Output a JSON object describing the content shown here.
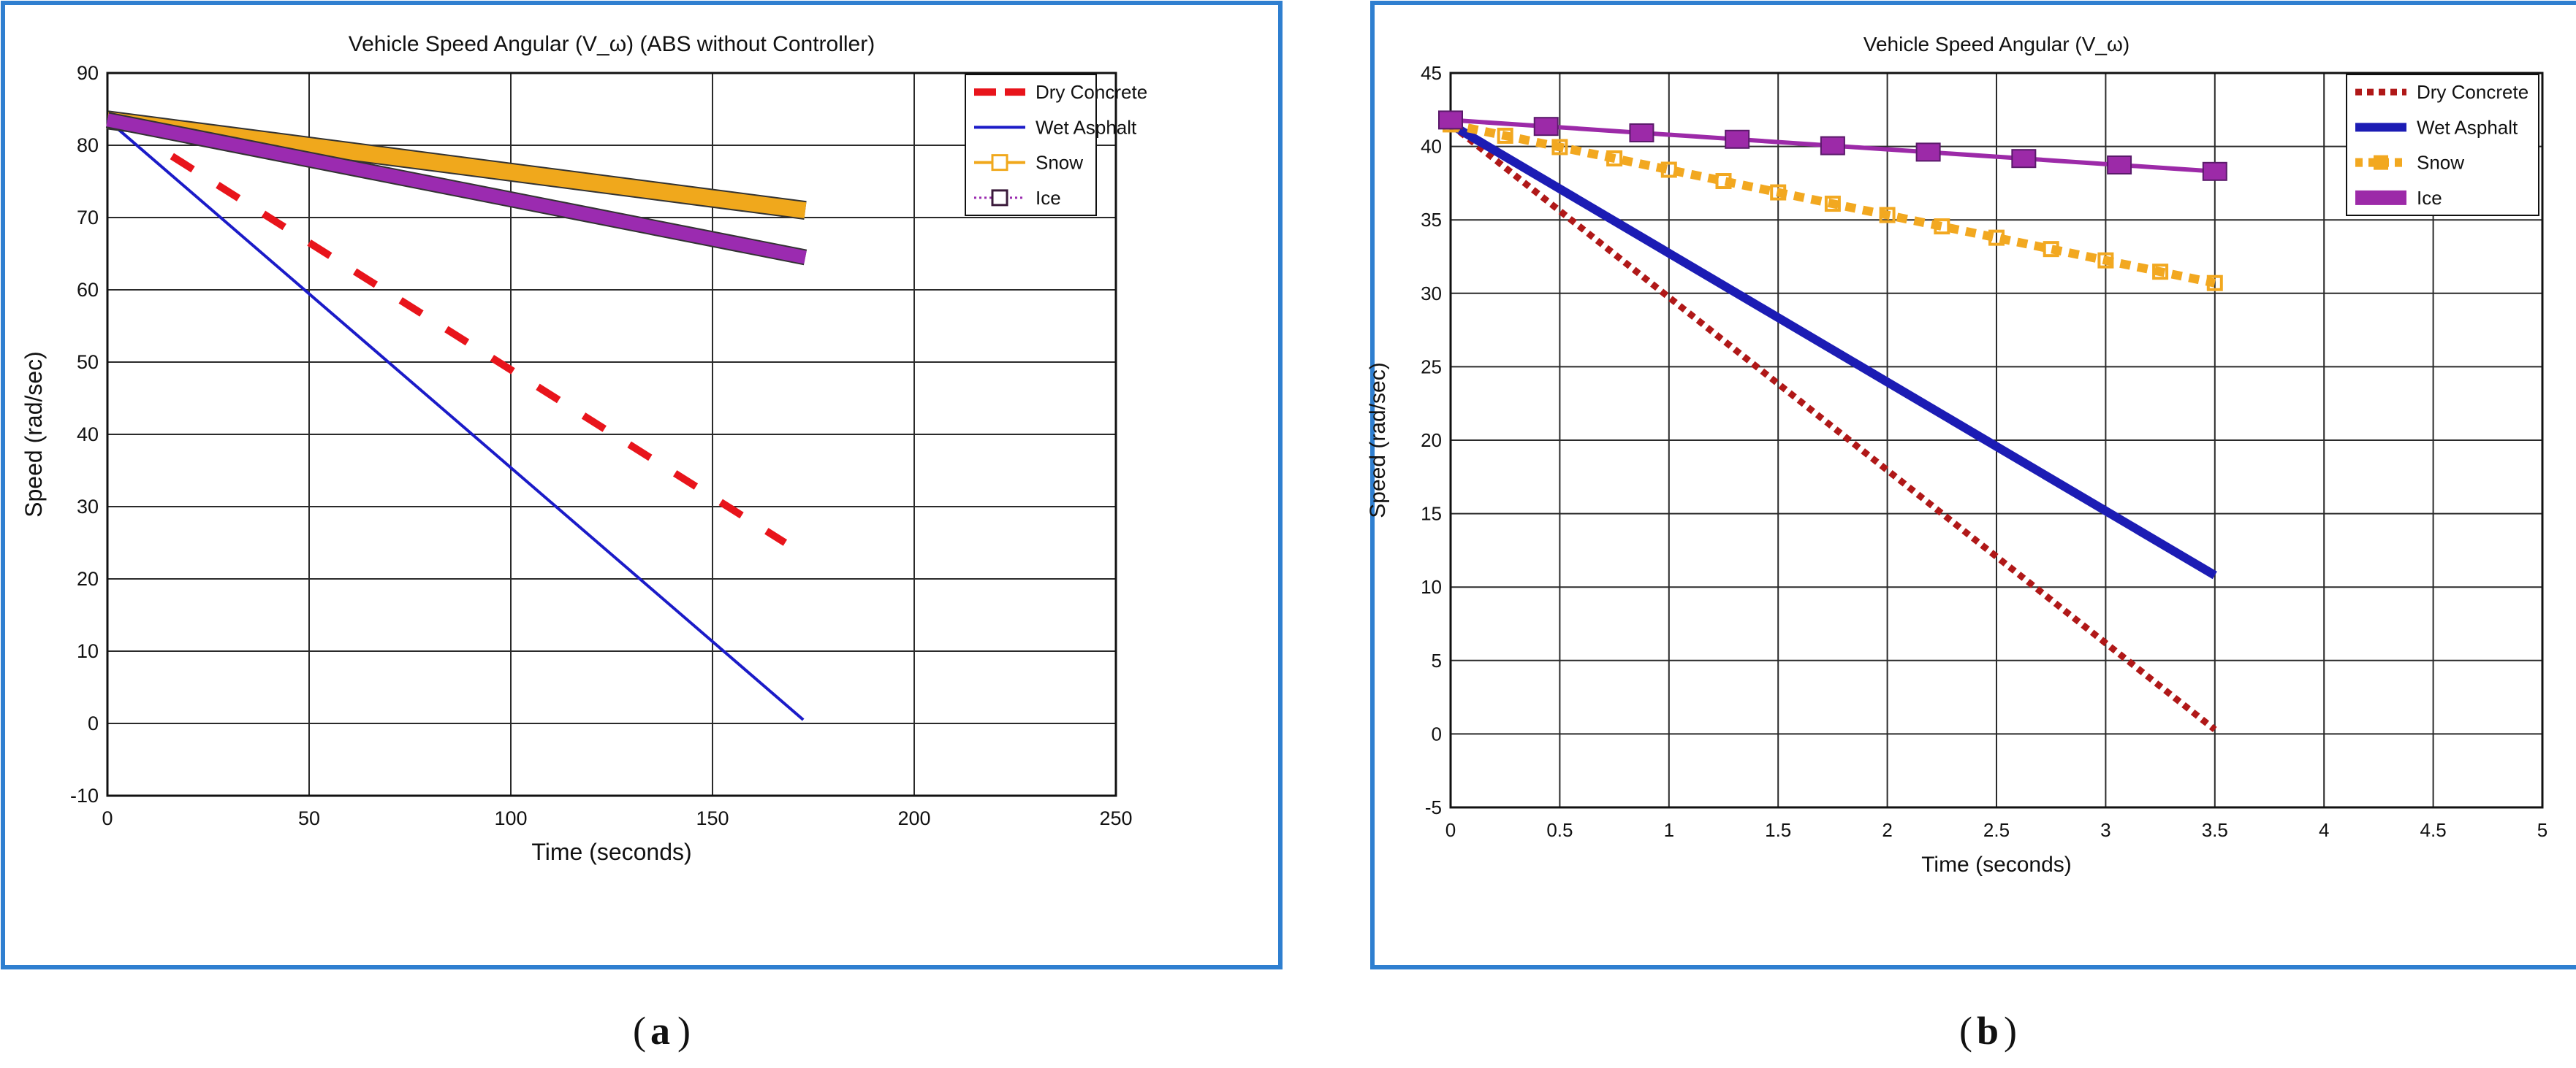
{
  "chart_data": [
    {
      "id": "a",
      "type": "line",
      "title": "Vehicle Speed Angular (V_ω) (ABS without Controller)",
      "xlabel": "Time (seconds)",
      "ylabel": "Speed (rad/sec)",
      "caption": "a",
      "xlim": [
        0,
        250
      ],
      "ylim": [
        -10,
        90
      ],
      "xticks": [
        0,
        50,
        100,
        150,
        200,
        250
      ],
      "xtick_labels": [
        "0",
        "50",
        "100",
        "150",
        "200",
        "250"
      ],
      "yticks": [
        -10,
        0,
        10,
        20,
        30,
        40,
        50,
        60,
        70,
        80,
        90
      ],
      "ytick_labels": [
        "-10",
        "0",
        "10",
        "20",
        "30",
        "40",
        "50",
        "60",
        "70",
        "80",
        "90"
      ],
      "grid": true,
      "legend_position": "top-right",
      "series": [
        {
          "name": "Dry Concrete",
          "color": "#e8141b",
          "style": "dashed",
          "x": [
            16,
            168
          ],
          "y": [
            78.5,
            25
          ]
        },
        {
          "name": "Wet Asphalt",
          "color": "#1b1bc8",
          "style": "solid",
          "x": [
            0,
            172.5
          ],
          "y": [
            83.5,
            0.5
          ]
        },
        {
          "name": "Snow",
          "color": "#f0a81c",
          "style": "solid",
          "marker": "square",
          "x": [
            0,
            173
          ],
          "y": [
            83.5,
            71
          ]
        },
        {
          "name": "Ice",
          "color": "#9b2bb0",
          "style": "dotted",
          "marker": "square",
          "x": [
            0,
            173
          ],
          "y": [
            83.5,
            64.5
          ]
        }
      ]
    },
    {
      "id": "b",
      "type": "line",
      "title": "Vehicle Speed Angular (V_ω)",
      "xlabel": "Time (seconds)",
      "ylabel": "Speed (rad/sec)",
      "caption": "b",
      "xlim": [
        0,
        5
      ],
      "ylim": [
        -5,
        45
      ],
      "xticks": [
        0,
        0.5,
        1,
        1.5,
        2,
        2.5,
        3,
        3.5,
        4,
        4.5,
        5
      ],
      "xtick_labels": [
        "0",
        "0.5",
        "1",
        "1.5",
        "2",
        "2.5",
        "3",
        "3.5",
        "4",
        "4.5",
        "5"
      ],
      "yticks": [
        -5,
        0,
        5,
        10,
        15,
        20,
        25,
        30,
        35,
        40,
        45
      ],
      "ytick_labels": [
        "-5",
        "0",
        "5",
        "10",
        "15",
        "20",
        "25",
        "30",
        "35",
        "40",
        "45"
      ],
      "grid": true,
      "legend_position": "top-right",
      "series": [
        {
          "name": "Dry Concrete",
          "color": "#b01818",
          "style": "dotted",
          "x": [
            0,
            3.5
          ],
          "y": [
            41.5,
            0.3
          ]
        },
        {
          "name": "Wet Asphalt",
          "color": "#1c1cb4",
          "style": "solid",
          "x": [
            0,
            3.5
          ],
          "y": [
            41.5,
            10.8
          ]
        },
        {
          "name": "Snow",
          "color": "#f2a820",
          "style": "dashed",
          "marker": "square",
          "x": [
            0,
            3.5
          ],
          "y": [
            41.5,
            30.7
          ]
        },
        {
          "name": "Ice",
          "color": "#9c2aa8",
          "style": "solid",
          "marker": "square",
          "x": [
            0,
            3.5
          ],
          "y": [
            41.8,
            38.3
          ]
        }
      ]
    }
  ]
}
